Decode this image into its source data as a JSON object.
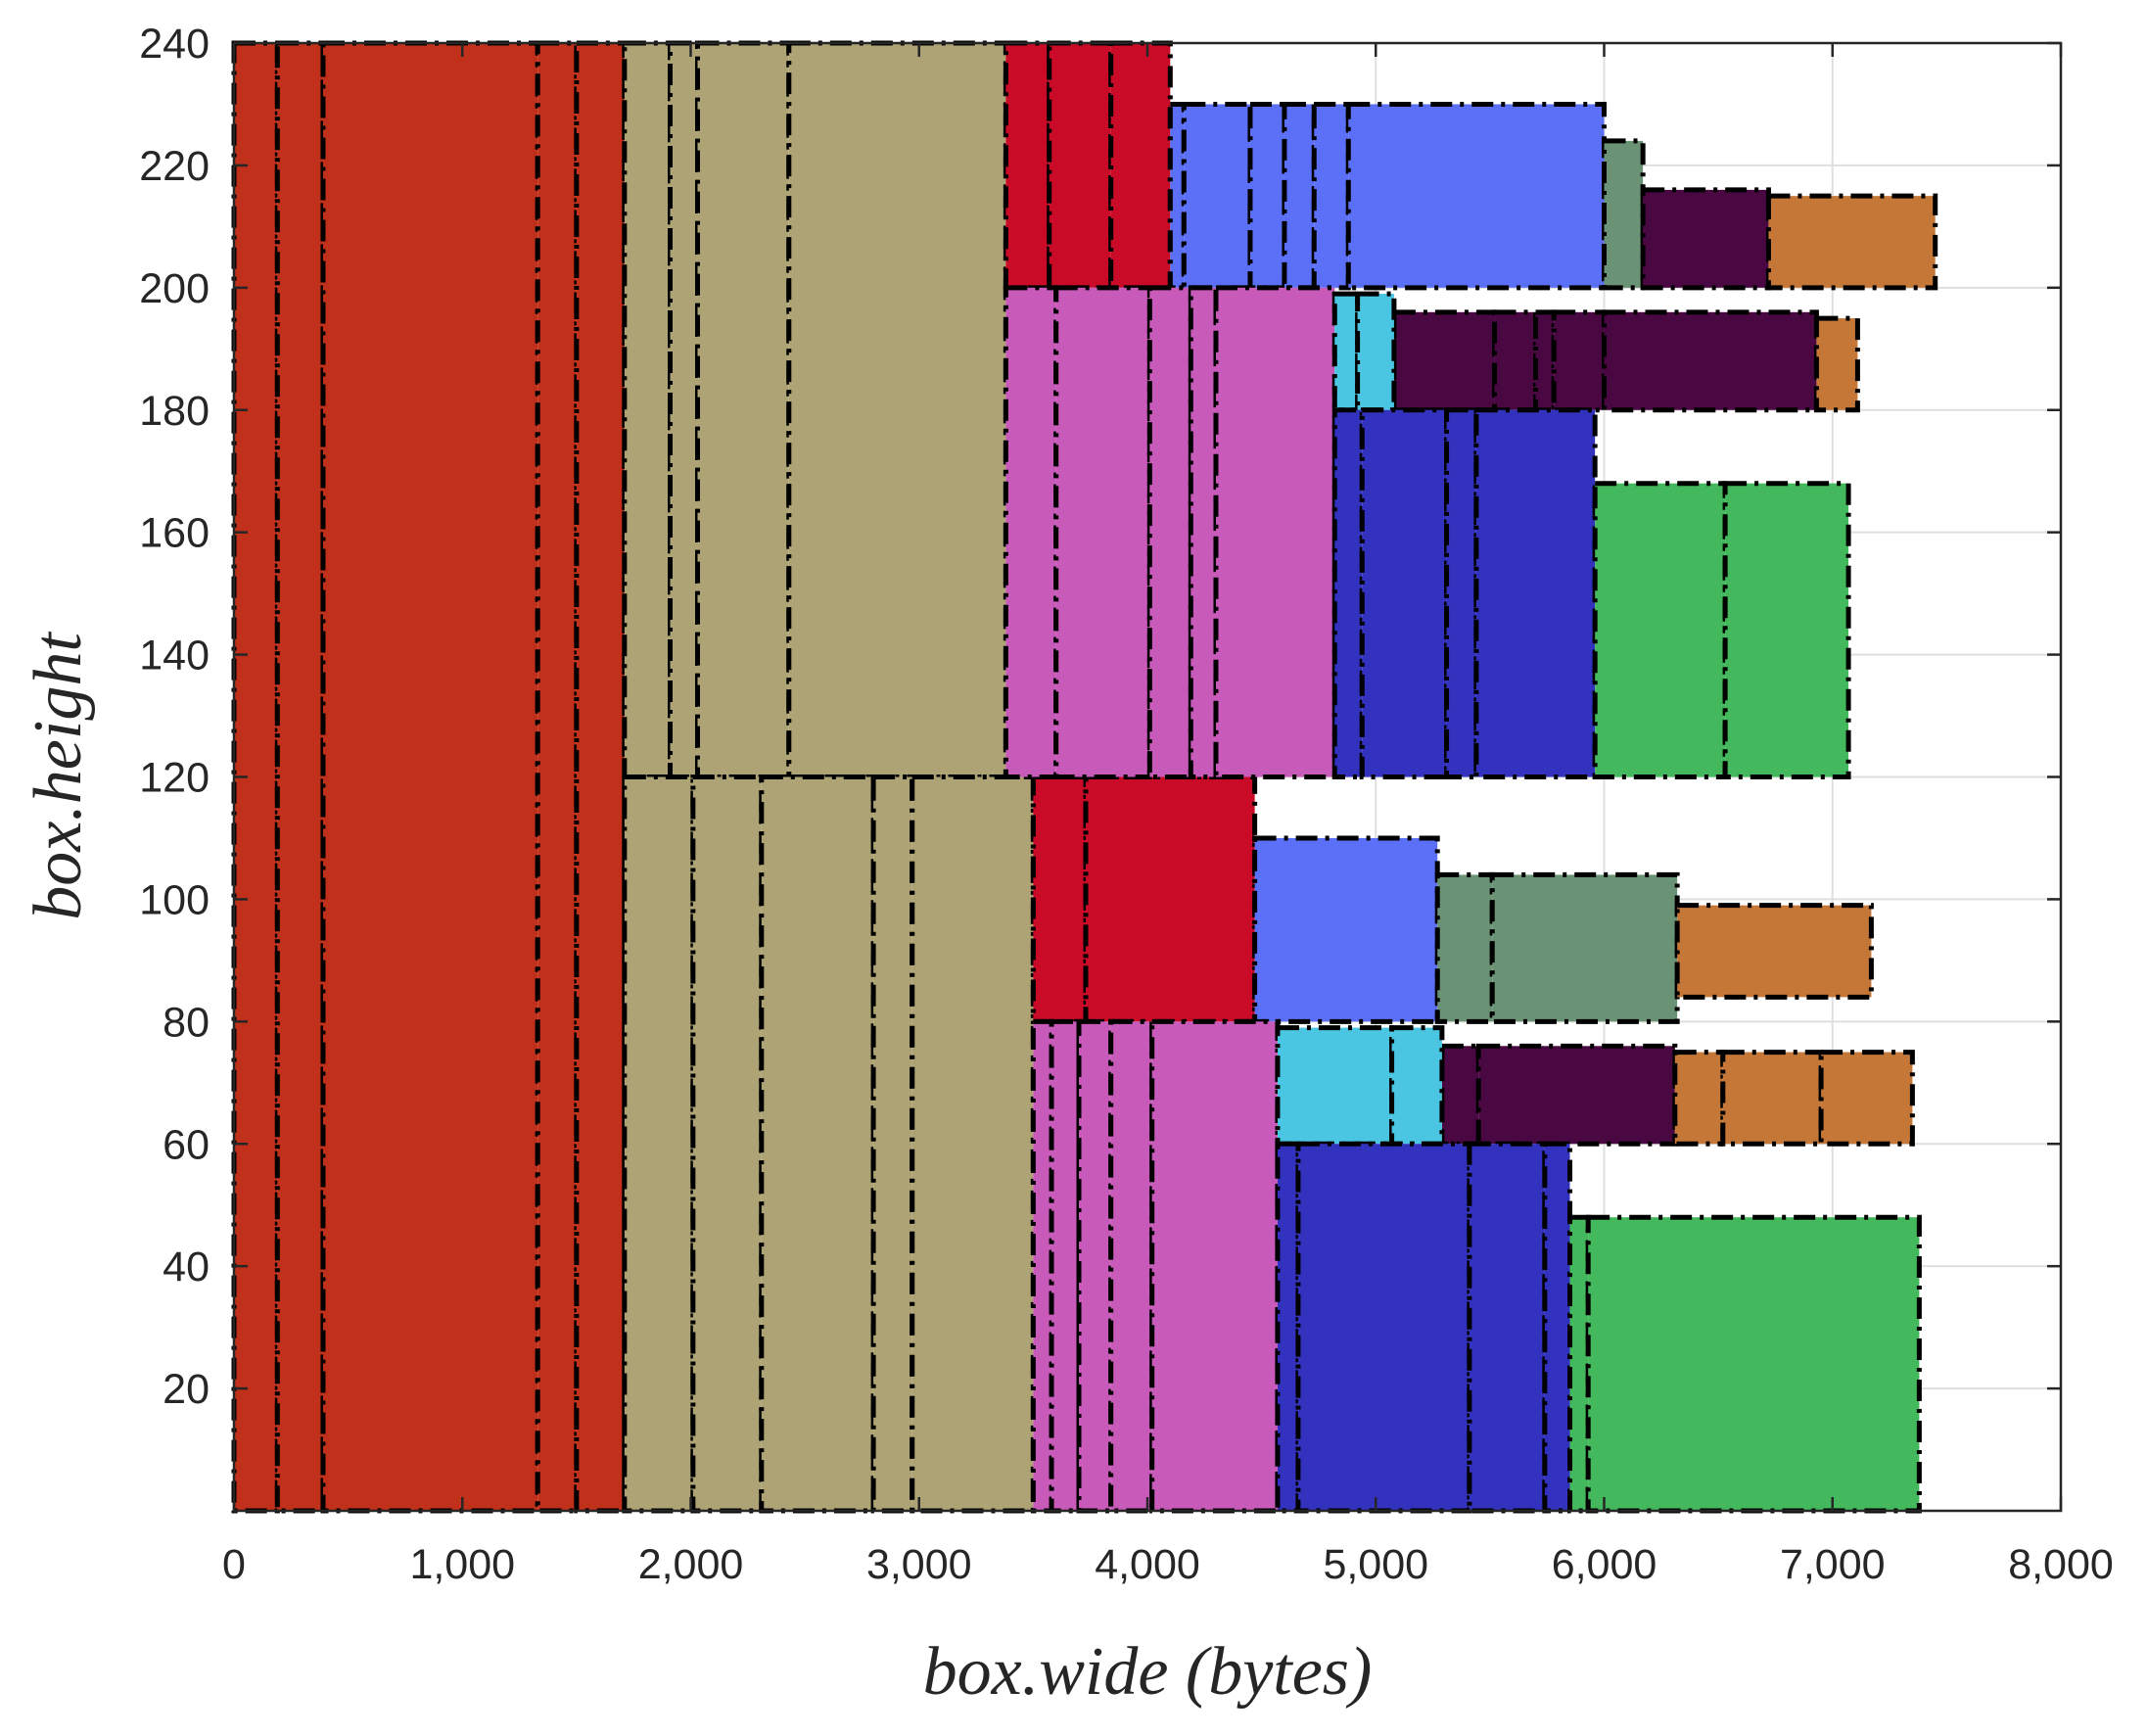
{
  "chart_data": {
    "type": "rectangle-packing",
    "title": "",
    "xlabel": "box.wide (bytes)",
    "ylabel": "box.height",
    "xlim": [
      0,
      8000
    ],
    "ylim": [
      0,
      240
    ],
    "xticks": [
      0,
      1000,
      2000,
      3000,
      4000,
      5000,
      6000,
      7000,
      8000
    ],
    "xtick_labels": [
      "0",
      "1,000",
      "2,000",
      "3,000",
      "4,000",
      "5,000",
      "6,000",
      "7,000",
      "8,000"
    ],
    "yticks": [
      20,
      40,
      60,
      80,
      100,
      120,
      140,
      160,
      180,
      200,
      220,
      240
    ],
    "ytick_labels": [
      "20",
      "40",
      "60",
      "80",
      "100",
      "120",
      "140",
      "160",
      "180",
      "200",
      "220",
      "240"
    ],
    "grid": true,
    "colors": {
      "rust": "#c0301a",
      "khaki": "#ada374",
      "crimson": "#c90b27",
      "periwinkle": "#5b70f7",
      "sage": "#6a9275",
      "plum": "#4a0843",
      "orange": "#c47737",
      "orchid": "#c85bb9",
      "cyan": "#4bc6e2",
      "royal": "#3232be",
      "green": "#43b85c"
    },
    "boxes": [
      {
        "x0": 0,
        "x1": 190,
        "y0": 0,
        "y1": 240,
        "color": "rust"
      },
      {
        "x0": 190,
        "x1": 390,
        "y0": 0,
        "y1": 240,
        "color": "rust"
      },
      {
        "x0": 390,
        "x1": 1330,
        "y0": 0,
        "y1": 240,
        "color": "rust"
      },
      {
        "x0": 1330,
        "x1": 1500,
        "y0": 0,
        "y1": 240,
        "color": "rust"
      },
      {
        "x0": 1500,
        "x1": 1710,
        "y0": 0,
        "y1": 240,
        "color": "rust"
      },
      {
        "x0": 1710,
        "x1": 1910,
        "y0": 120,
        "y1": 240,
        "color": "khaki"
      },
      {
        "x0": 1910,
        "x1": 2030,
        "y0": 120,
        "y1": 240,
        "color": "khaki"
      },
      {
        "x0": 2030,
        "x1": 2430,
        "y0": 120,
        "y1": 240,
        "color": "khaki"
      },
      {
        "x0": 2430,
        "x1": 3380,
        "y0": 120,
        "y1": 240,
        "color": "khaki"
      },
      {
        "x0": 1710,
        "x1": 2010,
        "y0": 0,
        "y1": 120,
        "color": "khaki"
      },
      {
        "x0": 2010,
        "x1": 2310,
        "y0": 0,
        "y1": 120,
        "color": "khaki"
      },
      {
        "x0": 2310,
        "x1": 2800,
        "y0": 0,
        "y1": 120,
        "color": "khaki"
      },
      {
        "x0": 2800,
        "x1": 2970,
        "y0": 0,
        "y1": 120,
        "color": "khaki"
      },
      {
        "x0": 2970,
        "x1": 3500,
        "y0": 0,
        "y1": 120,
        "color": "khaki"
      },
      {
        "x0": 3380,
        "x1": 3570,
        "y0": 200,
        "y1": 240,
        "color": "crimson"
      },
      {
        "x0": 3570,
        "x1": 3840,
        "y0": 200,
        "y1": 240,
        "color": "crimson"
      },
      {
        "x0": 3840,
        "x1": 4100,
        "y0": 200,
        "y1": 240,
        "color": "crimson"
      },
      {
        "x0": 3500,
        "x1": 3730,
        "y0": 80,
        "y1": 120,
        "color": "crimson"
      },
      {
        "x0": 3730,
        "x1": 4470,
        "y0": 80,
        "y1": 120,
        "color": "crimson"
      },
      {
        "x0": 4100,
        "x1": 4160,
        "y0": 200,
        "y1": 230,
        "color": "periwinkle"
      },
      {
        "x0": 4160,
        "x1": 4450,
        "y0": 200,
        "y1": 230,
        "color": "periwinkle"
      },
      {
        "x0": 4450,
        "x1": 4600,
        "y0": 200,
        "y1": 230,
        "color": "periwinkle"
      },
      {
        "x0": 4600,
        "x1": 4730,
        "y0": 200,
        "y1": 230,
        "color": "periwinkle"
      },
      {
        "x0": 4730,
        "x1": 4880,
        "y0": 200,
        "y1": 230,
        "color": "periwinkle"
      },
      {
        "x0": 4880,
        "x1": 6000,
        "y0": 200,
        "y1": 230,
        "color": "periwinkle"
      },
      {
        "x0": 4470,
        "x1": 5270,
        "y0": 80,
        "y1": 110,
        "color": "periwinkle"
      },
      {
        "x0": 6000,
        "x1": 6170,
        "y0": 200,
        "y1": 224,
        "color": "sage"
      },
      {
        "x0": 5270,
        "x1": 5510,
        "y0": 80,
        "y1": 104,
        "color": "sage"
      },
      {
        "x0": 5510,
        "x1": 6320,
        "y0": 80,
        "y1": 104,
        "color": "sage"
      },
      {
        "x0": 6170,
        "x1": 6720,
        "y0": 200,
        "y1": 216,
        "color": "plum"
      },
      {
        "x0": 5080,
        "x1": 5520,
        "y0": 180,
        "y1": 196,
        "color": "plum"
      },
      {
        "x0": 5520,
        "x1": 5700,
        "y0": 180,
        "y1": 196,
        "color": "plum"
      },
      {
        "x0": 5700,
        "x1": 5780,
        "y0": 180,
        "y1": 196,
        "color": "plum"
      },
      {
        "x0": 5780,
        "x1": 6000,
        "y0": 180,
        "y1": 196,
        "color": "plum"
      },
      {
        "x0": 6000,
        "x1": 6930,
        "y0": 180,
        "y1": 196,
        "color": "plum"
      },
      {
        "x0": 5290,
        "x1": 5450,
        "y0": 60,
        "y1": 76,
        "color": "plum"
      },
      {
        "x0": 5450,
        "x1": 6310,
        "y0": 60,
        "y1": 76,
        "color": "plum"
      },
      {
        "x0": 6720,
        "x1": 7450,
        "y0": 200,
        "y1": 215,
        "color": "orange"
      },
      {
        "x0": 6930,
        "x1": 7110,
        "y0": 180,
        "y1": 195,
        "color": "orange"
      },
      {
        "x0": 6320,
        "x1": 7170,
        "y0": 84,
        "y1": 99,
        "color": "orange"
      },
      {
        "x0": 6310,
        "x1": 6520,
        "y0": 60,
        "y1": 75,
        "color": "orange"
      },
      {
        "x0": 6520,
        "x1": 6950,
        "y0": 60,
        "y1": 75,
        "color": "orange"
      },
      {
        "x0": 6950,
        "x1": 7350,
        "y0": 60,
        "y1": 75,
        "color": "orange"
      },
      {
        "x0": 3380,
        "x1": 3600,
        "y0": 120,
        "y1": 200,
        "color": "orchid"
      },
      {
        "x0": 3600,
        "x1": 4010,
        "y0": 120,
        "y1": 200,
        "color": "orchid"
      },
      {
        "x0": 4010,
        "x1": 4190,
        "y0": 120,
        "y1": 200,
        "color": "orchid"
      },
      {
        "x0": 4190,
        "x1": 4300,
        "y0": 120,
        "y1": 200,
        "color": "orchid"
      },
      {
        "x0": 4300,
        "x1": 4820,
        "y0": 120,
        "y1": 200,
        "color": "orchid"
      },
      {
        "x0": 3500,
        "x1": 3580,
        "y0": 0,
        "y1": 80,
        "color": "orchid"
      },
      {
        "x0": 3580,
        "x1": 3700,
        "y0": 0,
        "y1": 80,
        "color": "orchid"
      },
      {
        "x0": 3700,
        "x1": 3840,
        "y0": 0,
        "y1": 80,
        "color": "orchid"
      },
      {
        "x0": 3840,
        "x1": 4020,
        "y0": 0,
        "y1": 80,
        "color": "orchid"
      },
      {
        "x0": 4020,
        "x1": 4570,
        "y0": 0,
        "y1": 80,
        "color": "orchid"
      },
      {
        "x0": 4820,
        "x1": 4920,
        "y0": 180,
        "y1": 199,
        "color": "cyan"
      },
      {
        "x0": 4920,
        "x1": 5080,
        "y0": 180,
        "y1": 199,
        "color": "cyan"
      },
      {
        "x0": 4570,
        "x1": 5070,
        "y0": 60,
        "y1": 79,
        "color": "cyan"
      },
      {
        "x0": 5070,
        "x1": 5290,
        "y0": 60,
        "y1": 79,
        "color": "cyan"
      },
      {
        "x0": 4820,
        "x1": 4940,
        "y0": 120,
        "y1": 180,
        "color": "royal"
      },
      {
        "x0": 4940,
        "x1": 5310,
        "y0": 120,
        "y1": 180,
        "color": "royal"
      },
      {
        "x0": 5310,
        "x1": 5440,
        "y0": 120,
        "y1": 180,
        "color": "royal"
      },
      {
        "x0": 5440,
        "x1": 5960,
        "y0": 120,
        "y1": 180,
        "color": "royal"
      },
      {
        "x0": 4570,
        "x1": 4660,
        "y0": 0,
        "y1": 60,
        "color": "royal"
      },
      {
        "x0": 4660,
        "x1": 5410,
        "y0": 0,
        "y1": 60,
        "color": "royal"
      },
      {
        "x0": 5410,
        "x1": 5740,
        "y0": 0,
        "y1": 60,
        "color": "royal"
      },
      {
        "x0": 5740,
        "x1": 5850,
        "y0": 0,
        "y1": 60,
        "color": "royal"
      },
      {
        "x0": 5960,
        "x1": 6530,
        "y0": 120,
        "y1": 168,
        "color": "green"
      },
      {
        "x0": 6530,
        "x1": 7070,
        "y0": 120,
        "y1": 168,
        "color": "green"
      },
      {
        "x0": 5850,
        "x1": 5930,
        "y0": 0,
        "y1": 48,
        "color": "green"
      },
      {
        "x0": 5930,
        "x1": 7380,
        "y0": 0,
        "y1": 48,
        "color": "green"
      }
    ]
  }
}
